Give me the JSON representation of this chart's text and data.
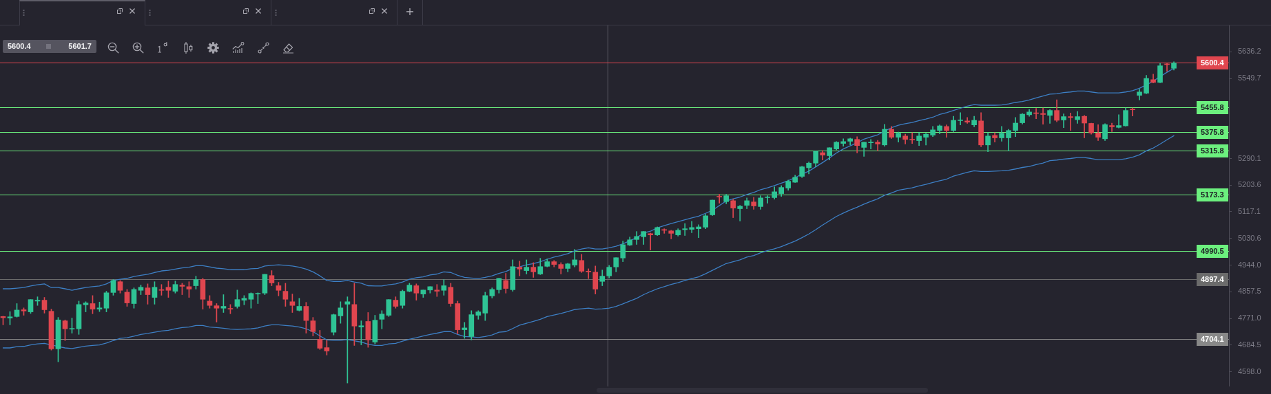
{
  "chart_data": {
    "type": "candlestick",
    "categories": [
      null,
      null,
      null,
      null,
      null,
      null,
      null,
      null,
      null,
      null,
      null,
      null,
      null,
      null,
      null,
      null,
      null,
      null,
      null,
      null,
      null,
      null,
      null,
      null,
      null,
      null,
      null,
      null,
      null,
      null,
      null,
      null,
      null,
      null,
      null,
      null,
      null,
      null,
      null,
      null,
      null,
      null,
      null,
      null,
      null,
      null,
      null,
      null,
      null,
      null,
      null,
      null,
      null,
      null,
      null,
      null,
      null,
      null,
      null,
      null,
      null,
      null,
      null,
      null,
      null,
      null,
      null,
      null,
      null,
      null,
      null,
      null,
      null,
      null,
      null,
      null,
      null,
      null,
      null,
      null,
      null,
      null,
      null,
      null,
      null,
      null,
      null,
      null,
      null,
      null,
      null,
      null,
      null,
      null,
      null,
      null,
      null,
      null,
      null,
      null,
      null,
      null,
      null,
      null,
      null,
      null,
      null,
      null,
      null,
      null,
      null,
      null,
      null,
      null,
      null,
      null,
      null,
      null,
      null,
      null,
      null,
      null,
      null,
      null,
      null,
      null,
      null,
      null,
      null,
      null,
      null,
      null,
      null,
      null,
      null,
      null,
      null,
      null,
      null,
      null,
      null,
      null,
      null,
      null,
      null,
      null,
      null,
      null,
      null,
      null,
      null,
      null,
      null,
      null,
      null,
      null,
      null,
      null,
      null,
      null,
      null,
      null,
      null,
      null,
      null,
      null,
      null,
      null,
      null,
      null,
      null
    ],
    "ohlc": [
      [
        4777,
        4778,
        4750,
        4773
      ],
      [
        4772,
        4793,
        4750,
        4776
      ],
      [
        4777,
        4819,
        4775,
        4798
      ],
      [
        4799,
        4805,
        4781,
        4795
      ],
      [
        4792,
        4832,
        4787,
        4832
      ],
      [
        4827,
        4841,
        4813,
        4830
      ],
      [
        4830,
        4839,
        4788,
        4799
      ],
      [
        4794,
        4801,
        4668,
        4672
      ],
      [
        4672,
        4774,
        4630,
        4766
      ],
      [
        4763,
        4766,
        4699,
        4737
      ],
      [
        4736,
        4772,
        4723,
        4738
      ],
      [
        4737,
        4827,
        4719,
        4816
      ],
      [
        4815,
        4825,
        4792,
        4821
      ],
      [
        4819,
        4845,
        4786,
        4801
      ],
      [
        4801,
        4824,
        4793,
        4805
      ],
      [
        4804,
        4859,
        4792,
        4854
      ],
      [
        4855,
        4897,
        4846,
        4894
      ],
      [
        4890,
        4894,
        4853,
        4862
      ],
      [
        4856,
        4865,
        4810,
        4821
      ],
      [
        4819,
        4870,
        4804,
        4865
      ],
      [
        4862,
        4879,
        4848,
        4872
      ],
      [
        4870,
        4883,
        4817,
        4848
      ],
      [
        4839,
        4890,
        4817,
        4872
      ],
      [
        4863,
        4881,
        4846,
        4862
      ],
      [
        4872,
        4892,
        4839,
        4862
      ],
      [
        4859,
        4892,
        4853,
        4881
      ],
      [
        4879,
        4885,
        4848,
        4875
      ],
      [
        4874,
        4890,
        4839,
        4866
      ],
      [
        4877,
        4908,
        4866,
        4897
      ],
      [
        4897,
        4901,
        4801,
        4833
      ],
      [
        4827,
        4845,
        4804,
        4813
      ],
      [
        4812,
        4819,
        4759,
        4804
      ],
      [
        4804,
        4848,
        4790,
        4810
      ],
      [
        4802,
        4816,
        4786,
        4801
      ],
      [
        4810,
        4863,
        4804,
        4832
      ],
      [
        4830,
        4845,
        4815,
        4836
      ],
      [
        4833,
        4854,
        4804,
        4852
      ],
      [
        4850,
        4854,
        4819,
        4852
      ],
      [
        4853,
        4914,
        4848,
        4914
      ],
      [
        4910,
        4926,
        4877,
        4886
      ],
      [
        4877,
        4888,
        4844,
        4862
      ],
      [
        4859,
        4885,
        4810,
        4833
      ],
      [
        4825,
        4850,
        4790,
        4813
      ],
      [
        4797,
        4836,
        4795,
        4810
      ],
      [
        4810,
        4823,
        4723,
        4764
      ],
      [
        4763,
        4774,
        4714,
        4728
      ],
      [
        4703,
        4732,
        4670,
        4674
      ],
      [
        4676,
        4699,
        4652,
        4665
      ],
      [
        4726,
        4785,
        4717,
        4783
      ],
      [
        4779,
        4825,
        4755,
        4805
      ],
      [
        4817,
        4841,
        4561,
        4825
      ],
      [
        4816,
        4885,
        4683,
        4746
      ],
      [
        4743,
        4763,
        4685,
        4747
      ],
      [
        4761,
        4790,
        4677,
        4701
      ],
      [
        4694,
        4781,
        4688,
        4765
      ],
      [
        4768,
        4796,
        4737,
        4785
      ],
      [
        4781,
        4832,
        4777,
        4832
      ],
      [
        4830,
        4841,
        4804,
        4810
      ],
      [
        4813,
        4863,
        4804,
        4859
      ],
      [
        4859,
        4885,
        4857,
        4879
      ],
      [
        4877,
        4883,
        4830,
        4853
      ],
      [
        4850,
        4863,
        4839,
        4863
      ],
      [
        4863,
        4874,
        4853,
        4874
      ],
      [
        4863,
        4881,
        4842,
        4859
      ],
      [
        4862,
        4897,
        4846,
        4877
      ],
      [
        4872,
        4885,
        4810,
        4819
      ],
      [
        4819,
        4827,
        4721,
        4734
      ],
      [
        4734,
        4758,
        4706,
        4740
      ],
      [
        4712,
        4796,
        4701,
        4783
      ],
      [
        4781,
        4796,
        4768,
        4792
      ],
      [
        4788,
        4856,
        4764,
        4845
      ],
      [
        4844,
        4870,
        4837,
        4865
      ],
      [
        4864,
        4901,
        4853,
        4901
      ],
      [
        4894,
        4917,
        4853,
        4868
      ],
      [
        4864,
        4961,
        4859,
        4939
      ],
      [
        4937,
        4957,
        4909,
        4931
      ],
      [
        4926,
        4961,
        4915,
        4937
      ],
      [
        4937,
        4952,
        4904,
        4922
      ],
      [
        4915,
        4966,
        4913,
        4939
      ],
      [
        4940,
        4964,
        4938,
        4955
      ],
      [
        4955,
        4959,
        4938,
        4946
      ],
      [
        4946,
        4952,
        4915,
        4933
      ],
      [
        4933,
        4950,
        4922,
        4948
      ],
      [
        4944,
        4995,
        4938,
        4961
      ],
      [
        4959,
        4979,
        4920,
        4924
      ],
      [
        4924,
        4932,
        4900,
        4922
      ],
      [
        4921,
        4941,
        4850,
        4866
      ],
      [
        4891,
        4928,
        4877,
        4908
      ],
      [
        4909,
        4943,
        4902,
        4937
      ],
      [
        4938,
        4968,
        4922,
        4968
      ],
      [
        4967,
        5022,
        4955,
        5010
      ],
      [
        5009,
        5035,
        5007,
        5026
      ],
      [
        5027,
        5053,
        5011,
        5037
      ],
      [
        5036,
        5053,
        5011,
        5053
      ],
      [
        5046,
        5048,
        4993,
        5042
      ],
      [
        5042,
        5068,
        5040,
        5066
      ],
      [
        5059,
        5062,
        5047,
        5057
      ],
      [
        5055,
        5057,
        5029,
        5047
      ],
      [
        5042,
        5062,
        5038,
        5057
      ],
      [
        5059,
        5079,
        5040,
        5062
      ],
      [
        5060,
        5086,
        5049,
        5066
      ],
      [
        5062,
        5075,
        5033,
        5068
      ],
      [
        5067,
        5109,
        5062,
        5104
      ],
      [
        5107,
        5155,
        5105,
        5155
      ],
      [
        5166,
        5174,
        5145,
        5165
      ],
      [
        5150,
        5174,
        5143,
        5169
      ],
      [
        5153,
        5158,
        5098,
        5129
      ],
      [
        5127,
        5138,
        5087,
        5135
      ],
      [
        5138,
        5162,
        5127,
        5153
      ],
      [
        5149,
        5164,
        5125,
        5136
      ],
      [
        5134,
        5169,
        5125,
        5162
      ],
      [
        5163,
        5169,
        5145,
        5164
      ],
      [
        5163,
        5198,
        5158,
        5182
      ],
      [
        5176,
        5202,
        5167,
        5196
      ],
      [
        5194,
        5220,
        5187,
        5216
      ],
      [
        5213,
        5236,
        5212,
        5229
      ],
      [
        5232,
        5265,
        5228,
        5263
      ],
      [
        5260,
        5279,
        5240,
        5275
      ],
      [
        5275,
        5314,
        5263,
        5314
      ],
      [
        5309,
        5316,
        5285,
        5301
      ],
      [
        5299,
        5325,
        5285,
        5325
      ],
      [
        5321,
        5345,
        5318,
        5343
      ],
      [
        5339,
        5354,
        5330,
        5345
      ],
      [
        5346,
        5356,
        5334,
        5354
      ],
      [
        5352,
        5361,
        5308,
        5332
      ],
      [
        5326,
        5343,
        5297,
        5343
      ],
      [
        5341,
        5352,
        5321,
        5343
      ],
      [
        5343,
        5349,
        5315,
        5337
      ],
      [
        5334,
        5401,
        5330,
        5385
      ],
      [
        5385,
        5394,
        5355,
        5359
      ],
      [
        5359,
        5376,
        5343,
        5372
      ],
      [
        5363,
        5369,
        5337,
        5352
      ],
      [
        5352,
        5374,
        5339,
        5350
      ],
      [
        5348,
        5374,
        5332,
        5363
      ],
      [
        5359,
        5372,
        5334,
        5369
      ],
      [
        5366,
        5394,
        5361,
        5383
      ],
      [
        5381,
        5399,
        5370,
        5396
      ],
      [
        5394,
        5399,
        5359,
        5381
      ],
      [
        5381,
        5427,
        5377,
        5414
      ],
      [
        5413,
        5439,
        5399,
        5414
      ],
      [
        5412,
        5423,
        5404,
        5408
      ],
      [
        5399,
        5427,
        5393,
        5414
      ],
      [
        5412,
        5439,
        5328,
        5334
      ],
      [
        5334,
        5374,
        5312,
        5363
      ],
      [
        5365,
        5374,
        5343,
        5357
      ],
      [
        5357,
        5394,
        5346,
        5372
      ],
      [
        5357,
        5385,
        5314,
        5381
      ],
      [
        5381,
        5423,
        5361,
        5405
      ],
      [
        5406,
        5436,
        5402,
        5434
      ],
      [
        5432,
        5449,
        5427,
        5441
      ],
      [
        5438,
        5453,
        5419,
        5436
      ],
      [
        5436,
        5454,
        5401,
        5433
      ],
      [
        5430,
        5449,
        5404,
        5446
      ],
      [
        5446,
        5481,
        5409,
        5414
      ],
      [
        5415,
        5435,
        5390,
        5426
      ],
      [
        5426,
        5438,
        5381,
        5423
      ],
      [
        5416,
        5443,
        5404,
        5426
      ],
      [
        5427,
        5430,
        5357,
        5405
      ],
      [
        5404,
        5405,
        5369,
        5373
      ],
      [
        5373,
        5400,
        5348,
        5359
      ],
      [
        5354,
        5403,
        5348,
        5400
      ],
      [
        5397,
        5405,
        5377,
        5393
      ],
      [
        5391,
        5432,
        5389,
        5397
      ],
      [
        5396,
        5454,
        5395,
        5446
      ],
      [
        5450,
        5454,
        5428,
        5448
      ],
      [
        5495,
        5515,
        5480,
        5506
      ],
      [
        5502,
        5560,
        5500,
        5550
      ],
      [
        5546,
        5564,
        5535,
        5537
      ],
      [
        5537,
        5599,
        5536,
        5591
      ],
      [
        5597,
        5599,
        5573,
        5595
      ],
      [
        5583,
        5604,
        5577,
        5600
      ]
    ],
    "colors": [
      "#e0464f",
      "#2fc495",
      "#2fc495",
      "#e0464f",
      "#2fc495",
      "#2fc495",
      "#e0464f",
      "#e0464f",
      "#2fc495",
      "#e0464f",
      "#2fc495",
      "#2fc495",
      "#2fc495",
      "#e0464f",
      "#2fc495",
      "#2fc495",
      "#2fc495",
      "#e0464f",
      "#e0464f",
      "#2fc495",
      "#2fc495",
      "#e0464f",
      "#2fc495",
      "#e0464f",
      "#e0464f",
      "#2fc495",
      "#e0464f",
      "#e0464f",
      "#2fc495",
      "#e0464f",
      "#e0464f",
      "#e0464f",
      "#2fc495",
      "#e0464f",
      "#2fc495",
      "#2fc495",
      "#2fc495",
      "#2fc495",
      "#2fc495",
      "#e0464f",
      "#e0464f",
      "#e0464f",
      "#e0464f",
      "#2fc495",
      "#e0464f",
      "#e0464f",
      "#e0464f",
      "#e0464f",
      "#2fc495",
      "#2fc495",
      "#2fc495",
      "#e0464f",
      "#2fc495",
      "#e0464f",
      "#2fc495",
      "#2fc495",
      "#2fc495",
      "#e0464f",
      "#2fc495",
      "#2fc495",
      "#e0464f",
      "#2fc495",
      "#2fc495",
      "#e0464f",
      "#2fc495",
      "#e0464f",
      "#e0464f",
      "#2fc495",
      "#2fc495",
      "#2fc495",
      "#2fc495",
      "#2fc495",
      "#2fc495",
      "#e0464f",
      "#2fc495",
      "#e0464f",
      "#2fc495",
      "#e0464f",
      "#2fc495",
      "#2fc495",
      "#e0464f",
      "#e0464f",
      "#2fc495",
      "#2fc495",
      "#e0464f",
      "#e0464f",
      "#e0464f",
      "#2fc495",
      "#2fc495",
      "#2fc495",
      "#2fc495",
      "#2fc495",
      "#2fc495",
      "#2fc495",
      "#e0464f",
      "#2fc495",
      "#e0464f",
      "#e0464f",
      "#2fc495",
      "#2fc495",
      "#2fc495",
      "#2fc495",
      "#2fc495",
      "#2fc495",
      "#e0464f",
      "#2fc495",
      "#e0464f",
      "#2fc495",
      "#2fc495",
      "#e0464f",
      "#2fc495",
      "#2fc495",
      "#2fc495",
      "#2fc495",
      "#2fc495",
      "#2fc495",
      "#2fc495",
      "#2fc495",
      "#2fc495",
      "#e0464f",
      "#2fc495",
      "#2fc495",
      "#2fc495",
      "#2fc495",
      "#e0464f",
      "#2fc495",
      "#2fc495",
      "#e0464f",
      "#2fc495",
      "#e0464f",
      "#2fc495",
      "#e0464f",
      "#e0464f",
      "#2fc495",
      "#2fc495",
      "#2fc495",
      "#2fc495",
      "#e0464f",
      "#2fc495",
      "#2fc495",
      "#e0464f",
      "#2fc495",
      "#e0464f",
      "#2fc495",
      "#e0464f",
      "#2fc495",
      "#2fc495",
      "#2fc495",
      "#2fc495",
      "#2fc495",
      "#e0464f",
      "#e0464f",
      "#2fc495",
      "#e0464f",
      "#2fc495",
      "#e0464f",
      "#2fc495",
      "#e0464f",
      "#e0464f",
      "#e0464f",
      "#2fc495",
      "#e0464f",
      "#2fc495",
      "#2fc495",
      "#e0464f",
      "#2fc495",
      "#2fc495",
      "#e0464f",
      "#2fc495",
      "#e0464f",
      "#2fc495"
    ],
    "series": [
      {
        "type": "line",
        "color": "#3d7fc4",
        "values": [
          4867,
          4867,
          4869,
          4871,
          4876,
          4880,
          4883,
          4871,
          4871,
          4867,
          4862,
          4867,
          4871,
          4874,
          4876,
          4883,
          4894,
          4898,
          4901,
          4907,
          4911,
          4914,
          4920,
          4925,
          4927,
          4931,
          4935,
          4937,
          4942,
          4942,
          4938,
          4934,
          4932,
          4929,
          4929,
          4929,
          4932,
          4933,
          4941,
          4943,
          4945,
          4943,
          4941,
          4937,
          4931,
          4922,
          4909,
          4894,
          4891,
          4891,
          4894,
          4889,
          4885,
          4877,
          4876,
          4876,
          4880,
          4883,
          4889,
          4898,
          4903,
          4906,
          4912,
          4915,
          4922,
          4920,
          4911,
          4904,
          4902,
          4900,
          4904,
          4909,
          4917,
          4923,
          4933,
          4938,
          4945,
          4949,
          4955,
          4963,
          4970,
          4975,
          4981,
          4990,
          4996,
          5000,
          4996,
          4996,
          5000,
          5005,
          5013,
          5023,
          5033,
          5048,
          5054,
          5065,
          5072,
          5079,
          5085,
          5091,
          5097,
          5103,
          5112,
          5122,
          5137,
          5152,
          5159,
          5165,
          5173,
          5180,
          5189,
          5195,
          5202,
          5210,
          5218,
          5228,
          5239,
          5249,
          5263,
          5277,
          5292,
          5308,
          5321,
          5331,
          5341,
          5353,
          5360,
          5367,
          5379,
          5390,
          5398,
          5403,
          5407,
          5413,
          5418,
          5424,
          5433,
          5439,
          5446,
          5453,
          5460,
          5465,
          5463,
          5463,
          5463,
          5464,
          5467,
          5472,
          5475,
          5480,
          5487,
          5493,
          5499,
          5500,
          5504,
          5506,
          5509,
          5509,
          5506,
          5503,
          5503,
          5503,
          5503,
          5506,
          5510,
          5518,
          5529,
          5541,
          5556,
          5570,
          5583
        ]
      },
      {
        "type": "line",
        "color": "#3d7fc4",
        "values": [
          4675,
          4675,
          4679,
          4680,
          4685,
          4688,
          4690,
          null,
          4680,
          4675,
          4673,
          4677,
          4681,
          4683,
          4685,
          4691,
          4699,
          4706,
          4708,
          4713,
          4719,
          4722,
          4726,
          4730,
          4732,
          4737,
          4741,
          4743,
          4748,
          4748,
          4743,
          4741,
          4739,
          4736,
          4735,
          4736,
          4737,
          4740,
          4746,
          4750,
          4750,
          4748,
          4746,
          4743,
          4737,
          4728,
          4714,
          4701,
          4700,
          4700,
          4702,
          4698,
          4694,
          4687,
          4683,
          4683,
          4688,
          4690,
          4697,
          4703,
          4708,
          4714,
          4719,
          4723,
          4728,
          4728,
          4719,
          4712,
          4711,
          4709,
          4712,
          4717,
          4726,
          4728,
          4738,
          4749,
          4755,
          4761,
          4768,
          4777,
          4782,
          4787,
          4793,
          4800,
          4802,
          4804,
          4801,
          4802,
          4804,
          4810,
          4818,
          4827,
          4836,
          4848,
          4858,
          4867,
          4874,
          4881,
          4887,
          4894,
          4900,
          4906,
          4916,
          4927,
          4938,
          4949,
          4955,
          4961,
          4970,
          4975,
          4984,
          4991,
          4997,
          5004,
          5013,
          5022,
          5033,
          5045,
          5059,
          5074,
          5088,
          5102,
          5113,
          5123,
          5132,
          5142,
          5151,
          5159,
          5171,
          5178,
          5187,
          5191,
          5195,
          5201,
          5206,
          5212,
          5218,
          5223,
          5233,
          5239,
          5245,
          5250,
          5248,
          5248,
          5249,
          5250,
          5252,
          5256,
          5261,
          5264,
          5270,
          5275,
          5283,
          5285,
          5288,
          5290,
          5293,
          5293,
          5290,
          5286,
          5286,
          5286,
          5286,
          5289,
          5294,
          5302,
          5315,
          5324,
          5337,
          5351,
          5364
        ]
      }
    ],
    "ylim": [
      4550,
      5722
    ],
    "yticks": [
      {
        "value": 4598,
        "label": "4598.0"
      },
      4684.5,
      {
        "value": 4771,
        "label": "4771.0"
      },
      4857.5,
      {
        "value": 4944,
        "label": "4944.0"
      },
      5030.6,
      5117.1,
      5203.6,
      5290.1,
      5549.7,
      5636.2
    ],
    "ref_lines": [
      {
        "axis": "y",
        "value": 5600.4,
        "label": "5600.4",
        "color": "#e0464f"
      },
      {
        "axis": "y",
        "value": 5455.8,
        "label": "5455.8",
        "color": "#6cf07e"
      },
      {
        "axis": "y",
        "value": 5375.8,
        "label": "5375.8",
        "color": "#6cf07e"
      },
      {
        "axis": "y",
        "value": 5315.8,
        "label": "5315.8",
        "color": "#6cf07e"
      },
      {
        "axis": "y",
        "value": 5173.3,
        "label": "5173.3",
        "color": "#6cf07e"
      },
      {
        "axis": "y",
        "value": 4990.5,
        "label": "4990.5",
        "color": "#6cf07e"
      },
      {
        "axis": "y",
        "value": 4897.4,
        "label": "4897.4",
        "color": "#6b6b6b"
      },
      {
        "axis": "y",
        "value": 4704.1,
        "label": "4704.1",
        "color": "#888888"
      }
    ],
    "annotations": [
      "5600.4",
      "5601.7"
    ],
    "tick_labels": "y"
  }
}
